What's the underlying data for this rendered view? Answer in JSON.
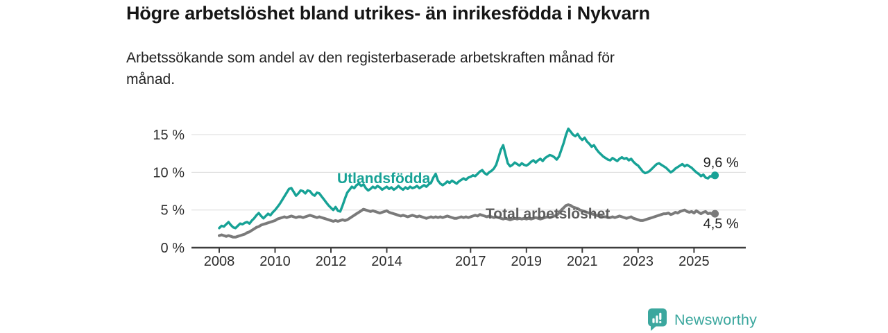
{
  "header": {
    "title": "Högre arbetslöshet bland utrikes- än inrikesfödda i Nykvarn",
    "subtitle_line1": "Arbetssökande som andel av den registerbaserade arbetskraften månad för",
    "subtitle_line2": "månad."
  },
  "chart_data": {
    "type": "line",
    "title": "Högre arbetslöshet bland utrikes- än inrikesfödda i Nykvarn",
    "subtitle": "Arbetssökande som andel av den registerbaserade arbetskraften månad för månad.",
    "unit": "%",
    "frequency": "monthly",
    "x_start": "2008-01",
    "x_end": "2025-10",
    "ylim": [
      0,
      16.5
    ],
    "grid": true,
    "legend_position": "inline-labels",
    "y_ticks": [
      {
        "value": 0,
        "label": "0 %"
      },
      {
        "value": 5,
        "label": "5 %"
      },
      {
        "value": 10,
        "label": "10 %"
      },
      {
        "value": 15,
        "label": "15 %"
      }
    ],
    "x_ticks": [
      {
        "year": 2008,
        "label": "2008"
      },
      {
        "year": 2010,
        "label": "2010"
      },
      {
        "year": 2012,
        "label": "2012"
      },
      {
        "year": 2014,
        "label": "2014"
      },
      {
        "year": 2017,
        "label": "2017"
      },
      {
        "year": 2019,
        "label": "2019"
      },
      {
        "year": 2021,
        "label": "2021"
      },
      {
        "year": 2023,
        "label": "2023"
      },
      {
        "year": 2025,
        "label": "2025"
      }
    ],
    "series": [
      {
        "id": "utlandsfodda",
        "name": "Utlandsfödda",
        "color": "#17a296",
        "label_color": "#17a296",
        "end_label": "9,6 %",
        "end_value": 9.6,
        "values": [
          2.6,
          2.9,
          2.8,
          3.1,
          3.4,
          3.0,
          2.7,
          2.6,
          2.9,
          3.2,
          3.1,
          3.3,
          3.4,
          3.2,
          3.6,
          3.9,
          4.3,
          4.6,
          4.2,
          3.9,
          4.2,
          4.5,
          4.3,
          4.7,
          5.0,
          5.4,
          5.8,
          6.3,
          6.8,
          7.3,
          7.8,
          7.9,
          7.4,
          6.9,
          7.2,
          7.6,
          7.5,
          7.2,
          7.6,
          7.5,
          7.1,
          6.9,
          7.3,
          7.2,
          6.8,
          6.4,
          6.0,
          5.6,
          5.3,
          5.0,
          5.4,
          4.9,
          4.8,
          5.6,
          6.5,
          7.3,
          7.7,
          8.1,
          7.9,
          8.3,
          8.5,
          8.2,
          8.4,
          7.9,
          7.6,
          7.8,
          8.1,
          7.9,
          8.2,
          8.0,
          7.7,
          7.9,
          8.1,
          7.8,
          8.0,
          7.7,
          7.9,
          8.2,
          7.9,
          7.7,
          8.0,
          7.8,
          8.1,
          7.9,
          8.0,
          8.2,
          7.9,
          8.1,
          8.3,
          8.1,
          8.4,
          8.6,
          9.3,
          9.8,
          8.9,
          8.5,
          8.3,
          8.5,
          8.8,
          8.6,
          8.9,
          8.7,
          8.5,
          8.8,
          9.0,
          9.2,
          9.0,
          9.3,
          9.4,
          9.6,
          9.5,
          9.8,
          10.1,
          10.3,
          9.9,
          9.7,
          10.0,
          10.2,
          10.5,
          11.0,
          12.0,
          13.0,
          13.6,
          12.4,
          11.2,
          10.8,
          11.0,
          11.3,
          11.1,
          10.9,
          11.2,
          11.0,
          10.9,
          11.1,
          11.4,
          11.6,
          11.3,
          11.6,
          11.8,
          11.5,
          11.9,
          12.1,
          12.3,
          12.2,
          12.0,
          11.7,
          12.1,
          13.0,
          13.9,
          15.0,
          15.8,
          15.4,
          15.0,
          14.8,
          15.1,
          14.6,
          14.3,
          14.6,
          14.1,
          13.8,
          13.4,
          13.6,
          13.1,
          12.7,
          12.4,
          12.1,
          11.9,
          11.7,
          11.6,
          11.9,
          11.7,
          11.5,
          11.8,
          12.0,
          11.8,
          11.9,
          11.6,
          11.8,
          11.4,
          11.1,
          10.9,
          10.5,
          10.1,
          9.9,
          10.0,
          10.2,
          10.5,
          10.8,
          11.1,
          11.2,
          11.0,
          10.8,
          10.6,
          10.3,
          10.0,
          10.2,
          10.5,
          10.7,
          10.9,
          11.1,
          10.8,
          11.0,
          10.8,
          10.6,
          10.3,
          10.0,
          9.8,
          9.5,
          9.7,
          9.3,
          9.2,
          9.5,
          9.4,
          9.6
        ]
      },
      {
        "id": "total-arbetsloshet",
        "name": "Total arbetslöshet",
        "color": "#7a7a7a",
        "label_color": "#5e5e5e",
        "end_label": "4,5 %",
        "end_value": 4.5,
        "values": [
          1.6,
          1.7,
          1.6,
          1.5,
          1.6,
          1.5,
          1.4,
          1.4,
          1.5,
          1.6,
          1.7,
          1.8,
          2.0,
          2.1,
          2.3,
          2.5,
          2.7,
          2.8,
          3.0,
          3.1,
          3.2,
          3.3,
          3.4,
          3.5,
          3.6,
          3.8,
          3.9,
          4.0,
          4.1,
          4.0,
          4.1,
          4.2,
          4.1,
          4.0,
          4.1,
          4.1,
          4.0,
          4.1,
          4.2,
          4.3,
          4.2,
          4.1,
          4.0,
          4.1,
          4.0,
          3.9,
          3.8,
          3.7,
          3.6,
          3.5,
          3.6,
          3.5,
          3.6,
          3.7,
          3.6,
          3.7,
          3.9,
          4.1,
          4.3,
          4.5,
          4.7,
          4.9,
          5.1,
          5.0,
          4.9,
          4.8,
          4.9,
          4.8,
          4.7,
          4.6,
          4.7,
          4.8,
          4.9,
          4.7,
          4.6,
          4.5,
          4.4,
          4.3,
          4.2,
          4.3,
          4.2,
          4.1,
          4.2,
          4.3,
          4.2,
          4.1,
          4.2,
          4.1,
          4.0,
          3.9,
          4.0,
          4.1,
          4.0,
          4.1,
          4.0,
          4.1,
          4.0,
          4.1,
          4.2,
          4.1,
          4.0,
          3.9,
          3.9,
          4.0,
          4.1,
          4.0,
          4.1,
          4.0,
          4.1,
          4.2,
          4.3,
          4.2,
          4.4,
          4.3,
          4.2,
          4.1,
          4.2,
          4.1,
          4.0,
          4.1,
          4.0,
          3.9,
          3.8,
          3.9,
          3.8,
          3.7,
          3.8,
          3.9,
          3.8,
          3.9,
          3.8,
          3.9,
          3.8,
          3.9,
          3.8,
          3.9,
          4.0,
          3.9,
          3.8,
          3.9,
          4.0,
          4.1,
          4.0,
          4.1,
          4.2,
          4.3,
          4.6,
          5.0,
          5.3,
          5.6,
          5.7,
          5.6,
          5.4,
          5.3,
          5.2,
          5.0,
          4.9,
          4.8,
          4.7,
          4.6,
          4.5,
          4.4,
          4.3,
          4.2,
          4.2,
          4.1,
          4.1,
          4.0,
          4.0,
          4.1,
          4.0,
          4.1,
          4.2,
          4.1,
          4.0,
          3.9,
          4.0,
          4.1,
          3.9,
          3.8,
          3.7,
          3.6,
          3.6,
          3.7,
          3.8,
          3.9,
          4.0,
          4.1,
          4.2,
          4.3,
          4.4,
          4.5,
          4.5,
          4.6,
          4.4,
          4.5,
          4.7,
          4.6,
          4.8,
          4.9,
          5.0,
          4.8,
          4.7,
          4.8,
          4.6,
          4.9,
          4.7,
          4.5,
          4.7,
          4.8,
          4.5,
          4.6,
          4.4,
          4.5
        ]
      }
    ]
  },
  "footer": {
    "brand": "Newsworthy"
  },
  "colors": {
    "accent_teal": "#17a296",
    "line_gray": "#7a7a7a",
    "label_gray": "#5e5e5e",
    "text": "#161616",
    "axis_text": "#2d2d2d",
    "grid": "#d9d9d9",
    "axis": "#3d3d3d",
    "brand_teal": "#3ba79e"
  }
}
